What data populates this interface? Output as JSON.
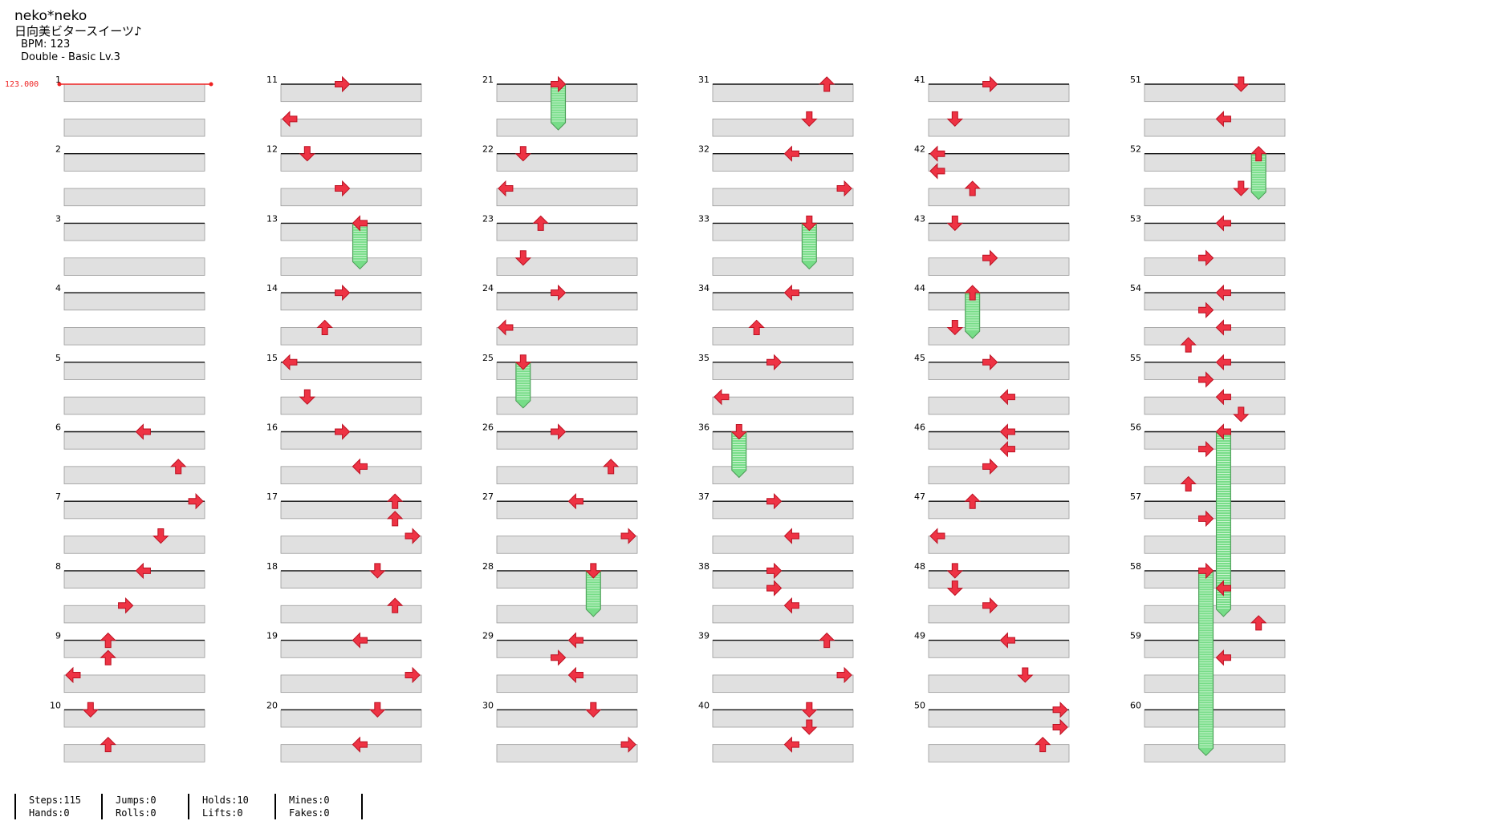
{
  "song": {
    "title": "neko*neko",
    "subtitle": "日向美ビタースイーツ♪",
    "bpm": "BPM: 123",
    "difficulty": "Double - Basic  Lv.3"
  },
  "bpm_marker": "123.000",
  "stats": [
    {
      "line1": "Steps:115",
      "line2": "Hands:0"
    },
    {
      "line1": "Jumps:0",
      "line2": "Rolls:0"
    },
    {
      "line1": "Holds:10",
      "line2": "Lifts:0"
    },
    {
      "line1": "Mines:0",
      "line2": "Fakes:0"
    }
  ],
  "colors": {
    "arrow": "#ee3344",
    "arrow_stroke": "#bb1122",
    "hold": "#77dd88",
    "band": "#e0e0e0",
    "bpm": "#ee2222"
  },
  "chart_data": {
    "type": "step-chart",
    "lanes": [
      "P1-left",
      "P1-down",
      "P1-up",
      "P1-right",
      "P2-left",
      "P2-down",
      "P2-up",
      "P2-right"
    ],
    "measures": 60,
    "rows_per_measure": 4,
    "notes": [
      {
        "m": 6,
        "b": 0,
        "lane": 4,
        "dir": "left"
      },
      {
        "m": 6,
        "b": 2,
        "lane": 6,
        "dir": "up"
      },
      {
        "m": 7,
        "b": 0,
        "lane": 7,
        "dir": "right"
      },
      {
        "m": 7,
        "b": 2,
        "lane": 5,
        "dir": "down"
      },
      {
        "m": 8,
        "b": 0,
        "lane": 4,
        "dir": "left"
      },
      {
        "m": 8,
        "b": 2,
        "lane": 3,
        "dir": "right"
      },
      {
        "m": 9,
        "b": 0,
        "lane": 2,
        "dir": "up"
      },
      {
        "m": 9,
        "b": 1,
        "lane": 2,
        "dir": "up"
      },
      {
        "m": 9,
        "b": 2,
        "lane": 0,
        "dir": "left"
      },
      {
        "m": 10,
        "b": 0,
        "lane": 1,
        "dir": "down"
      },
      {
        "m": 10,
        "b": 2,
        "lane": 2,
        "dir": "up"
      },
      {
        "m": 11,
        "b": 0,
        "lane": 3,
        "dir": "right"
      },
      {
        "m": 11,
        "b": 2,
        "lane": 0,
        "dir": "left"
      },
      {
        "m": 12,
        "b": 0,
        "lane": 1,
        "dir": "down"
      },
      {
        "m": 12,
        "b": 2,
        "lane": 3,
        "dir": "right"
      },
      {
        "m": 13,
        "b": 0,
        "lane": 4,
        "dir": "left",
        "hold": 1.2
      },
      {
        "m": 14,
        "b": 0,
        "lane": 3,
        "dir": "right"
      },
      {
        "m": 14,
        "b": 2,
        "lane": 2,
        "dir": "up"
      },
      {
        "m": 15,
        "b": 0,
        "lane": 0,
        "dir": "left"
      },
      {
        "m": 15,
        "b": 2,
        "lane": 1,
        "dir": "down"
      },
      {
        "m": 16,
        "b": 0,
        "lane": 3,
        "dir": "right"
      },
      {
        "m": 16,
        "b": 2,
        "lane": 4,
        "dir": "left"
      },
      {
        "m": 17,
        "b": 0,
        "lane": 6,
        "dir": "up"
      },
      {
        "m": 17,
        "b": 1,
        "lane": 6,
        "dir": "up"
      },
      {
        "m": 17,
        "b": 2,
        "lane": 7,
        "dir": "right"
      },
      {
        "m": 18,
        "b": 0,
        "lane": 5,
        "dir": "down"
      },
      {
        "m": 18,
        "b": 2,
        "lane": 6,
        "dir": "up"
      },
      {
        "m": 19,
        "b": 0,
        "lane": 4,
        "dir": "left"
      },
      {
        "m": 19,
        "b": 2,
        "lane": 7,
        "dir": "right"
      },
      {
        "m": 20,
        "b": 0,
        "lane": 5,
        "dir": "down"
      },
      {
        "m": 20,
        "b": 2,
        "lane": 4,
        "dir": "left"
      },
      {
        "m": 21,
        "b": 0,
        "lane": 3,
        "dir": "right",
        "hold": 1.2
      },
      {
        "m": 22,
        "b": 0,
        "lane": 1,
        "dir": "down"
      },
      {
        "m": 22,
        "b": 2,
        "lane": 0,
        "dir": "left"
      },
      {
        "m": 23,
        "b": 0,
        "lane": 2,
        "dir": "up"
      },
      {
        "m": 23,
        "b": 2,
        "lane": 1,
        "dir": "down"
      },
      {
        "m": 24,
        "b": 0,
        "lane": 3,
        "dir": "right"
      },
      {
        "m": 24,
        "b": 2,
        "lane": 0,
        "dir": "left"
      },
      {
        "m": 25,
        "b": 0,
        "lane": 1,
        "dir": "down",
        "hold": 1.2
      },
      {
        "m": 26,
        "b": 0,
        "lane": 3,
        "dir": "right"
      },
      {
        "m": 26,
        "b": 2,
        "lane": 6,
        "dir": "up"
      },
      {
        "m": 27,
        "b": 0,
        "lane": 4,
        "dir": "left"
      },
      {
        "m": 27,
        "b": 2,
        "lane": 7,
        "dir": "right"
      },
      {
        "m": 28,
        "b": 0,
        "lane": 5,
        "dir": "down",
        "hold": 1.2
      },
      {
        "m": 29,
        "b": 0,
        "lane": 4,
        "dir": "left"
      },
      {
        "m": 29,
        "b": 1,
        "lane": 3,
        "dir": "right"
      },
      {
        "m": 29,
        "b": 2,
        "lane": 4,
        "dir": "left"
      },
      {
        "m": 30,
        "b": 0,
        "lane": 5,
        "dir": "down"
      },
      {
        "m": 30,
        "b": 2,
        "lane": 7,
        "dir": "right"
      },
      {
        "m": 31,
        "b": 0,
        "lane": 6,
        "dir": "up"
      },
      {
        "m": 31,
        "b": 2,
        "lane": 5,
        "dir": "down"
      },
      {
        "m": 32,
        "b": 0,
        "lane": 4,
        "dir": "left"
      },
      {
        "m": 32,
        "b": 2,
        "lane": 7,
        "dir": "right"
      },
      {
        "m": 33,
        "b": 0,
        "lane": 5,
        "dir": "down",
        "hold": 1.2
      },
      {
        "m": 34,
        "b": 0,
        "lane": 4,
        "dir": "left"
      },
      {
        "m": 34,
        "b": 2,
        "lane": 2,
        "dir": "up"
      },
      {
        "m": 35,
        "b": 0,
        "lane": 3,
        "dir": "right"
      },
      {
        "m": 35,
        "b": 2,
        "lane": 0,
        "dir": "left"
      },
      {
        "m": 36,
        "b": 0,
        "lane": 1,
        "dir": "down",
        "hold": 1.2
      },
      {
        "m": 37,
        "b": 0,
        "lane": 3,
        "dir": "right"
      },
      {
        "m": 37,
        "b": 2,
        "lane": 4,
        "dir": "left"
      },
      {
        "m": 38,
        "b": 0,
        "lane": 3,
        "dir": "right"
      },
      {
        "m": 38,
        "b": 1,
        "lane": 3,
        "dir": "right"
      },
      {
        "m": 38,
        "b": 2,
        "lane": 4,
        "dir": "left"
      },
      {
        "m": 39,
        "b": 0,
        "lane": 6,
        "dir": "up"
      },
      {
        "m": 39,
        "b": 2,
        "lane": 7,
        "dir": "right"
      },
      {
        "m": 40,
        "b": 0,
        "lane": 5,
        "dir": "down"
      },
      {
        "m": 40,
        "b": 1,
        "lane": 5,
        "dir": "down"
      },
      {
        "m": 40,
        "b": 2,
        "lane": 4,
        "dir": "left"
      },
      {
        "m": 41,
        "b": 0,
        "lane": 3,
        "dir": "right"
      },
      {
        "m": 41,
        "b": 2,
        "lane": 1,
        "dir": "down"
      },
      {
        "m": 42,
        "b": 0,
        "lane": 0,
        "dir": "left"
      },
      {
        "m": 42,
        "b": 1,
        "lane": 0,
        "dir": "left"
      },
      {
        "m": 42,
        "b": 2,
        "lane": 2,
        "dir": "up"
      },
      {
        "m": 43,
        "b": 0,
        "lane": 1,
        "dir": "down"
      },
      {
        "m": 43,
        "b": 2,
        "lane": 3,
        "dir": "right"
      },
      {
        "m": 44,
        "b": 0,
        "lane": 2,
        "dir": "up",
        "hold": 1.2
      },
      {
        "m": 44,
        "b": 2,
        "lane": 1,
        "dir": "down"
      },
      {
        "m": 45,
        "b": 0,
        "lane": 3,
        "dir": "right"
      },
      {
        "m": 45,
        "b": 2,
        "lane": 4,
        "dir": "left"
      },
      {
        "m": 46,
        "b": 0,
        "lane": 4,
        "dir": "left"
      },
      {
        "m": 46,
        "b": 1,
        "lane": 4,
        "dir": "left"
      },
      {
        "m": 46,
        "b": 2,
        "lane": 3,
        "dir": "right"
      },
      {
        "m": 47,
        "b": 0,
        "lane": 2,
        "dir": "up"
      },
      {
        "m": 47,
        "b": 2,
        "lane": 0,
        "dir": "left"
      },
      {
        "m": 48,
        "b": 0,
        "lane": 1,
        "dir": "down"
      },
      {
        "m": 48,
        "b": 1,
        "lane": 1,
        "dir": "down"
      },
      {
        "m": 48,
        "b": 2,
        "lane": 3,
        "dir": "right"
      },
      {
        "m": 49,
        "b": 0,
        "lane": 4,
        "dir": "left"
      },
      {
        "m": 49,
        "b": 2,
        "lane": 5,
        "dir": "down"
      },
      {
        "m": 50,
        "b": 0,
        "lane": 7,
        "dir": "right"
      },
      {
        "m": 50,
        "b": 1,
        "lane": 7,
        "dir": "right"
      },
      {
        "m": 50,
        "b": 2,
        "lane": 6,
        "dir": "up"
      },
      {
        "m": 51,
        "b": 0,
        "lane": 5,
        "dir": "down"
      },
      {
        "m": 51,
        "b": 2,
        "lane": 4,
        "dir": "left"
      },
      {
        "m": 52,
        "b": 0,
        "lane": 6,
        "dir": "up",
        "hold": 1.2
      },
      {
        "m": 52,
        "b": 2,
        "lane": 5,
        "dir": "down"
      },
      {
        "m": 53,
        "b": 0,
        "lane": 4,
        "dir": "left"
      },
      {
        "m": 53,
        "b": 2,
        "lane": 3,
        "dir": "right"
      },
      {
        "m": 54,
        "b": 0,
        "lane": 4,
        "dir": "left"
      },
      {
        "m": 54,
        "b": 1,
        "lane": 3,
        "dir": "right"
      },
      {
        "m": 54,
        "b": 2,
        "lane": 4,
        "dir": "left"
      },
      {
        "m": 54,
        "b": 3,
        "lane": 2,
        "dir": "up"
      },
      {
        "m": 55,
        "b": 0,
        "lane": 4,
        "dir": "left"
      },
      {
        "m": 55,
        "b": 1,
        "lane": 3,
        "dir": "right"
      },
      {
        "m": 55,
        "b": 2,
        "lane": 4,
        "dir": "left"
      },
      {
        "m": 55,
        "b": 3,
        "lane": 5,
        "dir": "down"
      },
      {
        "m": 56,
        "b": 0,
        "lane": 4,
        "dir": "left",
        "hold": 5.2
      },
      {
        "m": 56,
        "b": 1,
        "lane": 3,
        "dir": "right"
      },
      {
        "m": 56,
        "b": 3,
        "lane": 2,
        "dir": "up"
      },
      {
        "m": 57,
        "b": 1,
        "lane": 3,
        "dir": "right"
      },
      {
        "m": 58,
        "b": 0,
        "lane": 3,
        "dir": "right",
        "hold": 5.2
      },
      {
        "m": 58,
        "b": 1,
        "lane": 4,
        "dir": "left"
      },
      {
        "m": 58,
        "b": 3,
        "lane": 6,
        "dir": "up"
      },
      {
        "m": 59,
        "b": 1,
        "lane": 4,
        "dir": "left"
      }
    ]
  }
}
